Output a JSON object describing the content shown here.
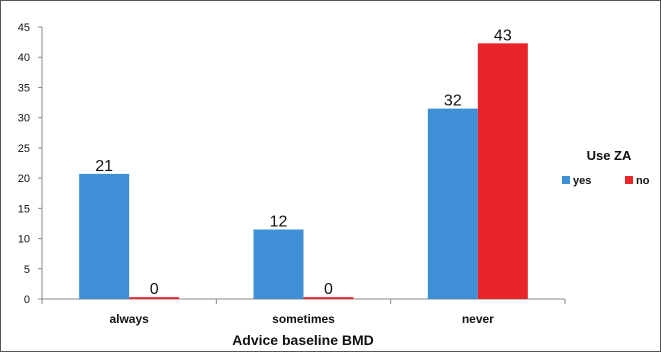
{
  "chart_data": {
    "type": "bar",
    "title": "",
    "xlabel": "Advice baseline BMD",
    "ylabel": "",
    "categories": [
      "always",
      "sometimes",
      "never"
    ],
    "series": [
      {
        "name": "yes",
        "color": "#3f8fd6",
        "values": [
          21,
          12,
          32
        ]
      },
      {
        "name": "no",
        "color": "#e8242a",
        "values": [
          0,
          0,
          43
        ]
      }
    ],
    "plotted_values": [
      [
        20.7,
        11.5,
        31.5
      ],
      [
        0.3,
        0.3,
        42.3
      ]
    ],
    "ylim": [
      0,
      45
    ],
    "yticks": [
      0,
      5,
      10,
      15,
      20,
      25,
      30,
      35,
      40,
      45
    ],
    "grid": false,
    "legend": {
      "title": "Use ZA",
      "position": "right"
    }
  }
}
